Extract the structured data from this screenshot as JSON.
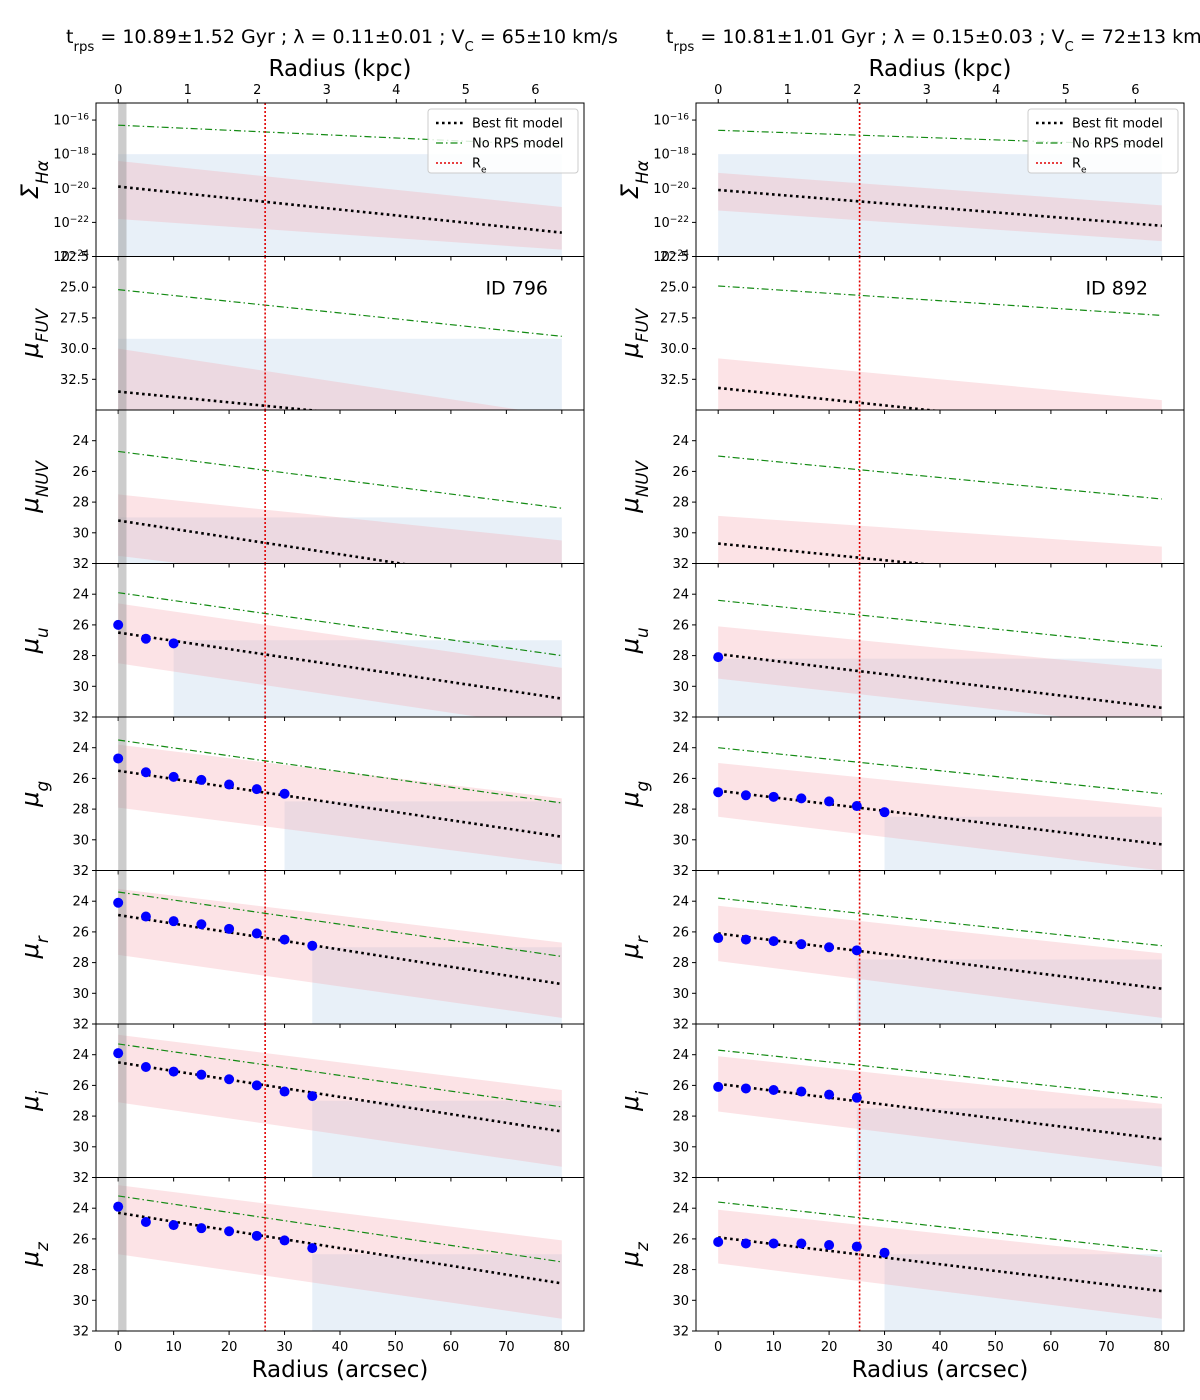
{
  "figure": {
    "legend_labels": [
      "Best fit model",
      "No RPS model",
      "R_e"
    ]
  },
  "chart_data": [
    {
      "type": "line",
      "title": "t_rps = 10.89±1.52 Gyr ;  λ = 0.11±0.01 ;  V_C = 65±10 km/s",
      "galaxy_id": "ID 796",
      "xlabel": "Radius (arcsec)",
      "xlabel_top": "Radius (kpc)",
      "xlim": [
        -4,
        84
      ],
      "xticks": [
        0,
        10,
        20,
        30,
        40,
        50,
        60,
        70,
        80
      ],
      "top_xlim_kpc": [
        -0.32,
        6.7
      ],
      "top_xticks_kpc": [
        0,
        1,
        2,
        3,
        4,
        5,
        6
      ],
      "re_arcsec": 26.5,
      "psf_band_arcsec": [
        0,
        1.5
      ],
      "legend": [
        "Best fit model",
        "No RPS model",
        "R_e"
      ],
      "panels": [
        {
          "band": "Hα",
          "ylabel": "Σ_Hα",
          "log": true,
          "ylim": [
            -24,
            -15
          ],
          "yticks": [
            -16,
            -18,
            -20,
            -22,
            -24
          ],
          "no_rps": [
            -16.3,
            -17.5
          ],
          "best": [
            -19.9,
            -22.6
          ],
          "best_band": [
            [
              -18.4,
              -21.8
            ],
            [
              -21.1,
              -23.6
            ]
          ],
          "obs_limit": -18.0,
          "obs_limit_x": 0,
          "points": []
        },
        {
          "band": "FUV",
          "ylabel": "μ_FUV",
          "ylim": [
            35,
            22.5
          ],
          "yticks": [
            22.5,
            25.0,
            27.5,
            30.0,
            32.5
          ],
          "no_rps": [
            25.2,
            29.0
          ],
          "best": [
            33.5,
            37.0
          ],
          "best_band": [
            [
              30.0,
              37.0
            ],
            [
              35.5,
              40.0
            ]
          ],
          "obs_limit": 29.2,
          "obs_limit_x": 0,
          "points": []
        },
        {
          "band": "NUV",
          "ylabel": "μ_NUV",
          "ylim": [
            32,
            22
          ],
          "yticks": [
            24,
            26,
            28,
            30,
            32
          ],
          "no_rps": [
            24.7,
            28.4
          ],
          "best": [
            29.2,
            33.6
          ],
          "best_band": [
            [
              27.5,
              31.5
            ],
            [
              30.5,
              35.0
            ]
          ],
          "obs_limit": 29.0,
          "obs_limit_x": 0,
          "points": []
        },
        {
          "band": "u",
          "ylabel": "μ_u",
          "ylim": [
            32,
            22
          ],
          "yticks": [
            24,
            26,
            28,
            30,
            32
          ],
          "no_rps": [
            23.9,
            28.0
          ],
          "best": [
            26.5,
            30.8
          ],
          "best_band": [
            [
              24.6,
              28.5
            ],
            [
              28.8,
              32.8
            ]
          ],
          "obs_limit": 27.0,
          "obs_limit_x": 10,
          "points": [
            [
              0,
              26.0
            ],
            [
              5,
              26.9
            ],
            [
              10,
              27.2
            ]
          ]
        },
        {
          "band": "g",
          "ylabel": "μ_g",
          "ylim": [
            32,
            22
          ],
          "yticks": [
            24,
            26,
            28,
            30,
            32
          ],
          "no_rps": [
            23.5,
            27.6
          ],
          "best": [
            25.5,
            29.8
          ],
          "best_band": [
            [
              23.8,
              27.9
            ],
            [
              27.3,
              31.6
            ]
          ],
          "obs_limit": 27.5,
          "obs_limit_x": 30,
          "points": [
            [
              0,
              24.7
            ],
            [
              5,
              25.6
            ],
            [
              10,
              25.9
            ],
            [
              15,
              26.1
            ],
            [
              20,
              26.4
            ],
            [
              25,
              26.7
            ],
            [
              30,
              27.0
            ]
          ]
        },
        {
          "band": "r",
          "ylabel": "μ_r",
          "ylim": [
            32,
            22
          ],
          "yticks": [
            24,
            26,
            28,
            30,
            32
          ],
          "no_rps": [
            23.4,
            27.6
          ],
          "best": [
            24.9,
            29.4
          ],
          "best_band": [
            [
              23.2,
              27.5
            ],
            [
              26.7,
              31.6
            ]
          ],
          "obs_limit": 27.0,
          "obs_limit_x": 35,
          "points": [
            [
              0,
              24.1
            ],
            [
              5,
              25.0
            ],
            [
              10,
              25.3
            ],
            [
              15,
              25.5
            ],
            [
              20,
              25.8
            ],
            [
              25,
              26.1
            ],
            [
              30,
              26.5
            ],
            [
              35,
              26.9
            ]
          ]
        },
        {
          "band": "i",
          "ylabel": "μ_i",
          "ylim": [
            32,
            22
          ],
          "yticks": [
            24,
            26,
            28,
            30,
            32
          ],
          "no_rps": [
            23.3,
            27.4
          ],
          "best": [
            24.5,
            29.0
          ],
          "best_band": [
            [
              22.7,
              27.1
            ],
            [
              26.3,
              31.3
            ]
          ],
          "obs_limit": 27.0,
          "obs_limit_x": 35,
          "points": [
            [
              0,
              23.9
            ],
            [
              5,
              24.8
            ],
            [
              10,
              25.1
            ],
            [
              15,
              25.3
            ],
            [
              20,
              25.6
            ],
            [
              25,
              26.0
            ],
            [
              30,
              26.4
            ],
            [
              35,
              26.7
            ]
          ]
        },
        {
          "band": "z",
          "ylabel": "μ_z",
          "ylim": [
            32,
            22
          ],
          "yticks": [
            24,
            26,
            28,
            30,
            32
          ],
          "no_rps": [
            23.2,
            27.5
          ],
          "best": [
            24.3,
            28.9
          ],
          "best_band": [
            [
              22.5,
              27.0
            ],
            [
              26.1,
              31.2
            ]
          ],
          "obs_limit": 27.0,
          "obs_limit_x": 35,
          "points": [
            [
              0,
              23.9
            ],
            [
              5,
              24.9
            ],
            [
              10,
              25.1
            ],
            [
              15,
              25.3
            ],
            [
              20,
              25.5
            ],
            [
              25,
              25.8
            ],
            [
              30,
              26.1
            ],
            [
              35,
              26.6
            ]
          ]
        }
      ]
    },
    {
      "type": "line",
      "title": "t_rps = 10.81±1.01 Gyr ;  λ = 0.15±0.03 ;  V_C = 72±13 km/s",
      "galaxy_id": "ID 892",
      "xlabel": "Radius (arcsec)",
      "xlabel_top": "Radius (kpc)",
      "xlim": [
        -4,
        84
      ],
      "xticks": [
        0,
        10,
        20,
        30,
        40,
        50,
        60,
        70,
        80
      ],
      "top_xlim_kpc": [
        -0.32,
        6.7
      ],
      "top_xticks_kpc": [
        0,
        1,
        2,
        3,
        4,
        5,
        6
      ],
      "re_arcsec": 25.5,
      "psf_band_arcsec": null,
      "legend": [
        "Best fit model",
        "No RPS model",
        "R_e"
      ],
      "panels": [
        {
          "band": "Hα",
          "ylabel": "Σ_Hα",
          "log": true,
          "ylim": [
            -24,
            -15
          ],
          "yticks": [
            -16,
            -18,
            -20,
            -22,
            -24
          ],
          "no_rps": [
            -16.6,
            -17.5
          ],
          "best": [
            -20.1,
            -22.2
          ],
          "best_band": [
            [
              -19.1,
              -21.3
            ],
            [
              -21.0,
              -23.1
            ]
          ],
          "obs_limit": -18.0,
          "obs_limit_x": 0,
          "points": []
        },
        {
          "band": "FUV",
          "ylabel": "μ_FUV",
          "ylim": [
            35,
            22.5
          ],
          "yticks": [
            22.5,
            25.0,
            27.5,
            30.0,
            32.5
          ],
          "no_rps": [
            24.9,
            27.3
          ],
          "best": [
            33.2,
            37.0
          ],
          "best_band": [
            [
              30.8,
              37.0
            ],
            [
              34.2,
              40.0
            ]
          ],
          "obs_limit": null,
          "obs_limit_x": 0,
          "points": []
        },
        {
          "band": "NUV",
          "ylabel": "μ_NUV",
          "ylim": [
            32,
            22
          ],
          "yticks": [
            24,
            26,
            28,
            30,
            32
          ],
          "no_rps": [
            25.0,
            27.8
          ],
          "best": [
            30.7,
            33.6
          ],
          "best_band": [
            [
              28.9,
              32.5
            ],
            [
              30.9,
              34.8
            ]
          ],
          "obs_limit": null,
          "obs_limit_x": 0,
          "points": []
        },
        {
          "band": "u",
          "ylabel": "μ_u",
          "ylim": [
            32,
            22
          ],
          "yticks": [
            24,
            26,
            28,
            30,
            32
          ],
          "no_rps": [
            24.4,
            27.4
          ],
          "best": [
            27.9,
            31.4
          ],
          "best_band": [
            [
              26.1,
              29.5
            ],
            [
              28.9,
              32.7
            ]
          ],
          "obs_limit": 28.2,
          "obs_limit_x": 0,
          "points": [
            [
              0,
              28.1
            ]
          ]
        },
        {
          "band": "g",
          "ylabel": "μ_g",
          "ylim": [
            32,
            22
          ],
          "yticks": [
            24,
            26,
            28,
            30,
            32
          ],
          "no_rps": [
            24.0,
            27.0
          ],
          "best": [
            26.8,
            30.3
          ],
          "best_band": [
            [
              25.0,
              28.5
            ],
            [
              27.9,
              32.0
            ]
          ],
          "obs_limit": 28.5,
          "obs_limit_x": 30,
          "points": [
            [
              0,
              26.9
            ],
            [
              5,
              27.1
            ],
            [
              10,
              27.2
            ],
            [
              15,
              27.3
            ],
            [
              20,
              27.5
            ],
            [
              25,
              27.8
            ],
            [
              30,
              28.2
            ]
          ]
        },
        {
          "band": "r",
          "ylabel": "μ_r",
          "ylim": [
            32,
            22
          ],
          "yticks": [
            24,
            26,
            28,
            30,
            32
          ],
          "no_rps": [
            23.8,
            26.9
          ],
          "best": [
            26.1,
            29.7
          ],
          "best_band": [
            [
              24.3,
              27.9
            ],
            [
              27.4,
              31.6
            ]
          ],
          "obs_limit": 27.8,
          "obs_limit_x": 25,
          "points": [
            [
              0,
              26.4
            ],
            [
              5,
              26.5
            ],
            [
              10,
              26.6
            ],
            [
              15,
              26.8
            ],
            [
              20,
              27.0
            ],
            [
              25,
              27.2
            ]
          ]
        },
        {
          "band": "i",
          "ylabel": "μ_i",
          "ylim": [
            32,
            22
          ],
          "yticks": [
            24,
            26,
            28,
            30,
            32
          ],
          "no_rps": [
            23.7,
            26.8
          ],
          "best": [
            25.9,
            29.5
          ],
          "best_band": [
            [
              24.1,
              27.7
            ],
            [
              27.2,
              31.3
            ]
          ],
          "obs_limit": 27.5,
          "obs_limit_x": 25,
          "points": [
            [
              0,
              26.1
            ],
            [
              5,
              26.2
            ],
            [
              10,
              26.3
            ],
            [
              15,
              26.4
            ],
            [
              20,
              26.6
            ],
            [
              25,
              26.8
            ]
          ]
        },
        {
          "band": "z",
          "ylabel": "μ_z",
          "ylim": [
            32,
            22
          ],
          "yticks": [
            24,
            26,
            28,
            30,
            32
          ],
          "no_rps": [
            23.6,
            26.8
          ],
          "best": [
            25.9,
            29.4
          ],
          "best_band": [
            [
              24.1,
              27.6
            ],
            [
              27.2,
              31.2
            ]
          ],
          "obs_limit": 27.0,
          "obs_limit_x": 30,
          "points": [
            [
              0,
              26.2
            ],
            [
              5,
              26.3
            ],
            [
              10,
              26.3
            ],
            [
              15,
              26.3
            ],
            [
              20,
              26.4
            ],
            [
              25,
              26.5
            ],
            [
              30,
              26.9
            ]
          ]
        }
      ]
    }
  ]
}
